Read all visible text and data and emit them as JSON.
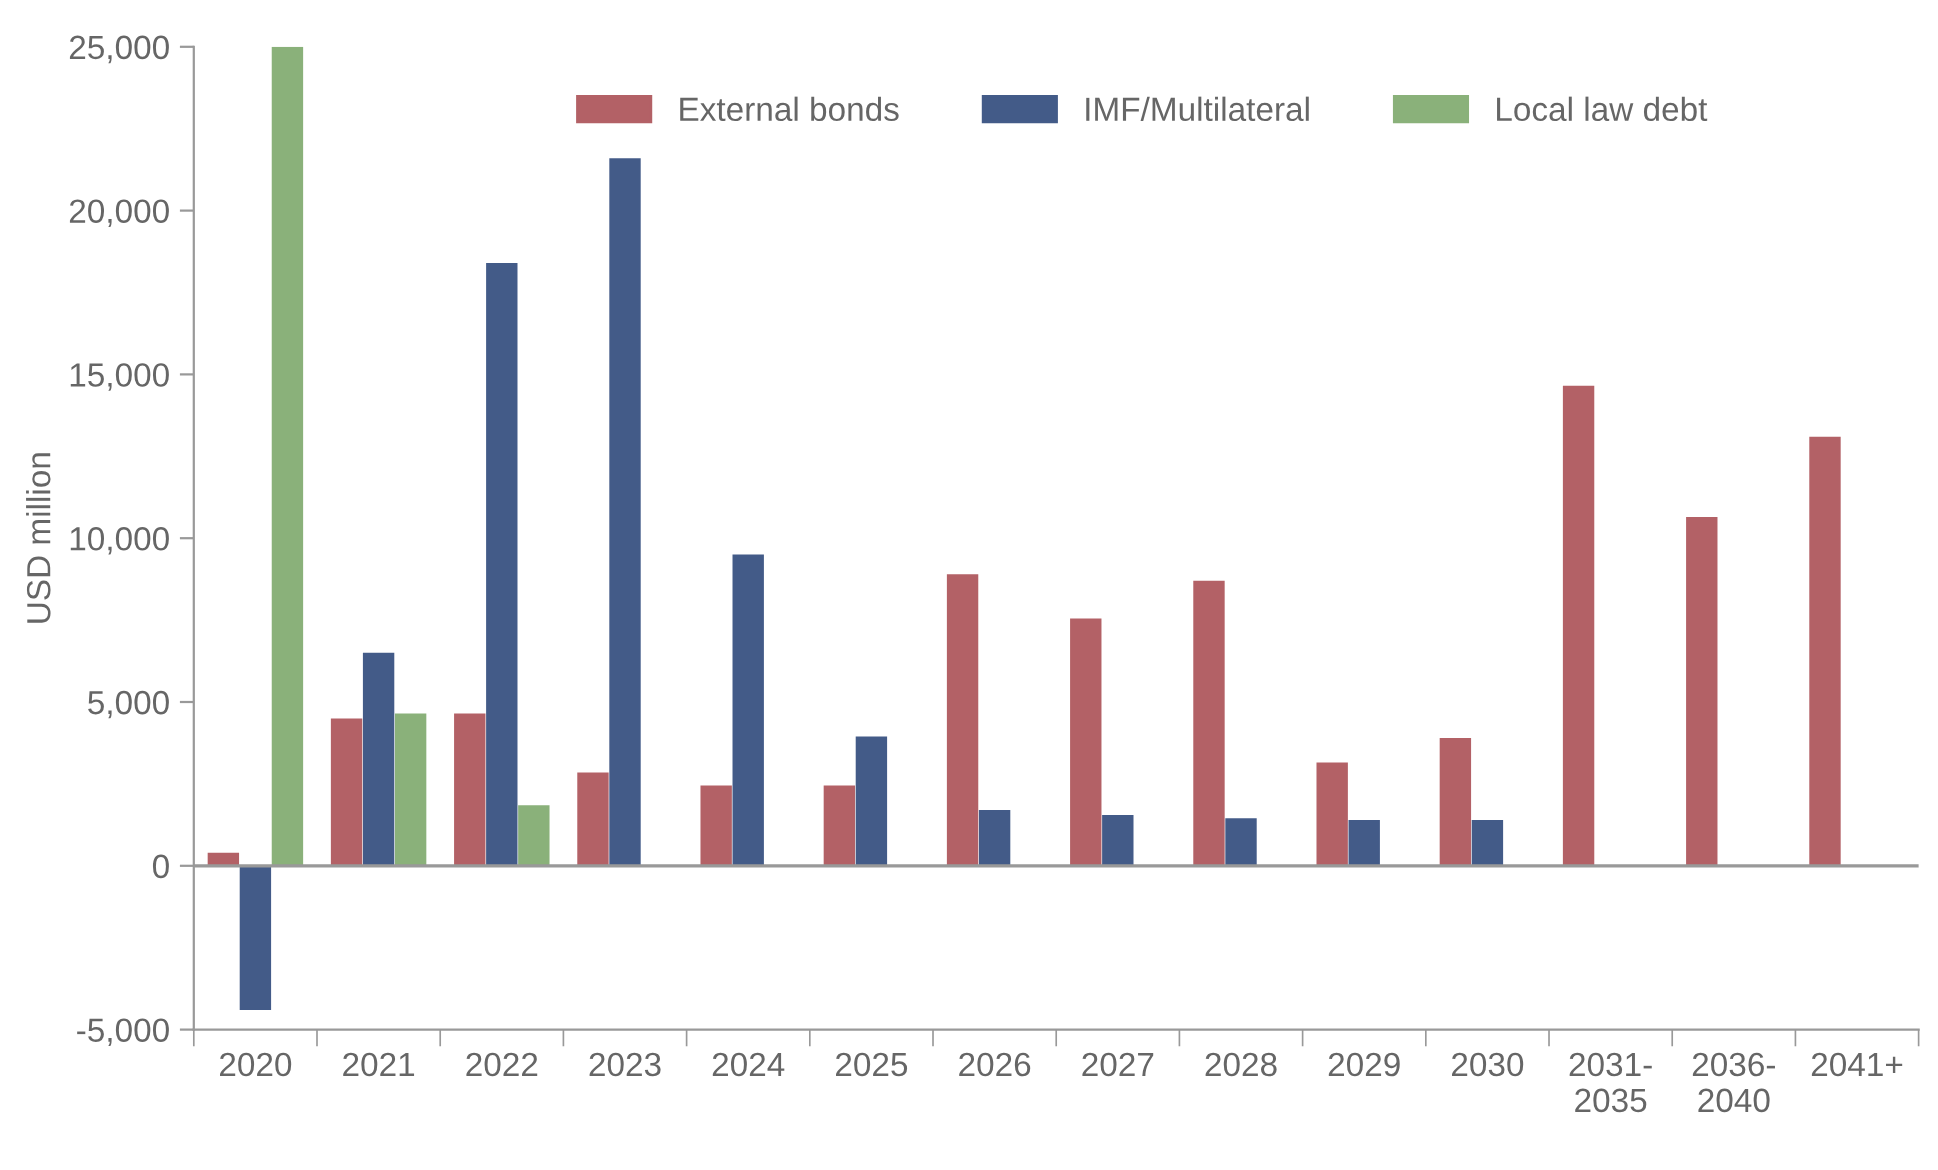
{
  "chart_data": {
    "type": "bar",
    "ylabel": "USD million",
    "categories": [
      "2020",
      "2021",
      "2022",
      "2023",
      "2024",
      "2025",
      "2026",
      "2027",
      "2028",
      "2029",
      "2030",
      "2031-\n2035",
      "2036-\n2040",
      "2041+"
    ],
    "series": [
      {
        "name": "External bonds",
        "color": "#b36166",
        "values": [
          400,
          4500,
          4650,
          2850,
          2450,
          2450,
          8900,
          7550,
          8700,
          3150,
          3900,
          14650,
          10650,
          13100
        ]
      },
      {
        "name": "IMF/Multilateral",
        "color": "#435b88",
        "values": [
          -4400,
          6500,
          18400,
          21600,
          9500,
          3950,
          1700,
          1550,
          1450,
          1400,
          1400,
          null,
          null,
          null
        ]
      },
      {
        "name": "Local law debt",
        "color": "#8ab17a",
        "values": [
          25000,
          4650,
          1850,
          null,
          null,
          null,
          null,
          null,
          null,
          null,
          null,
          null,
          null,
          null
        ]
      }
    ],
    "ylim": [
      -5000,
      25000
    ],
    "yticks": [
      {
        "value": -5000,
        "label": "-5,000"
      },
      0,
      {
        "value": 5000,
        "label": "5,000"
      },
      {
        "value": 10000,
        "label": "10,000"
      },
      {
        "value": 15000,
        "label": "15,000"
      },
      {
        "value": 20000,
        "label": "20,000"
      },
      {
        "value": 25000,
        "label": "25,000"
      }
    ],
    "ref_lines": [
      {
        "axis": "y",
        "value": 0,
        "color": "#999999"
      }
    ],
    "grid": false,
    "legend": "top"
  }
}
